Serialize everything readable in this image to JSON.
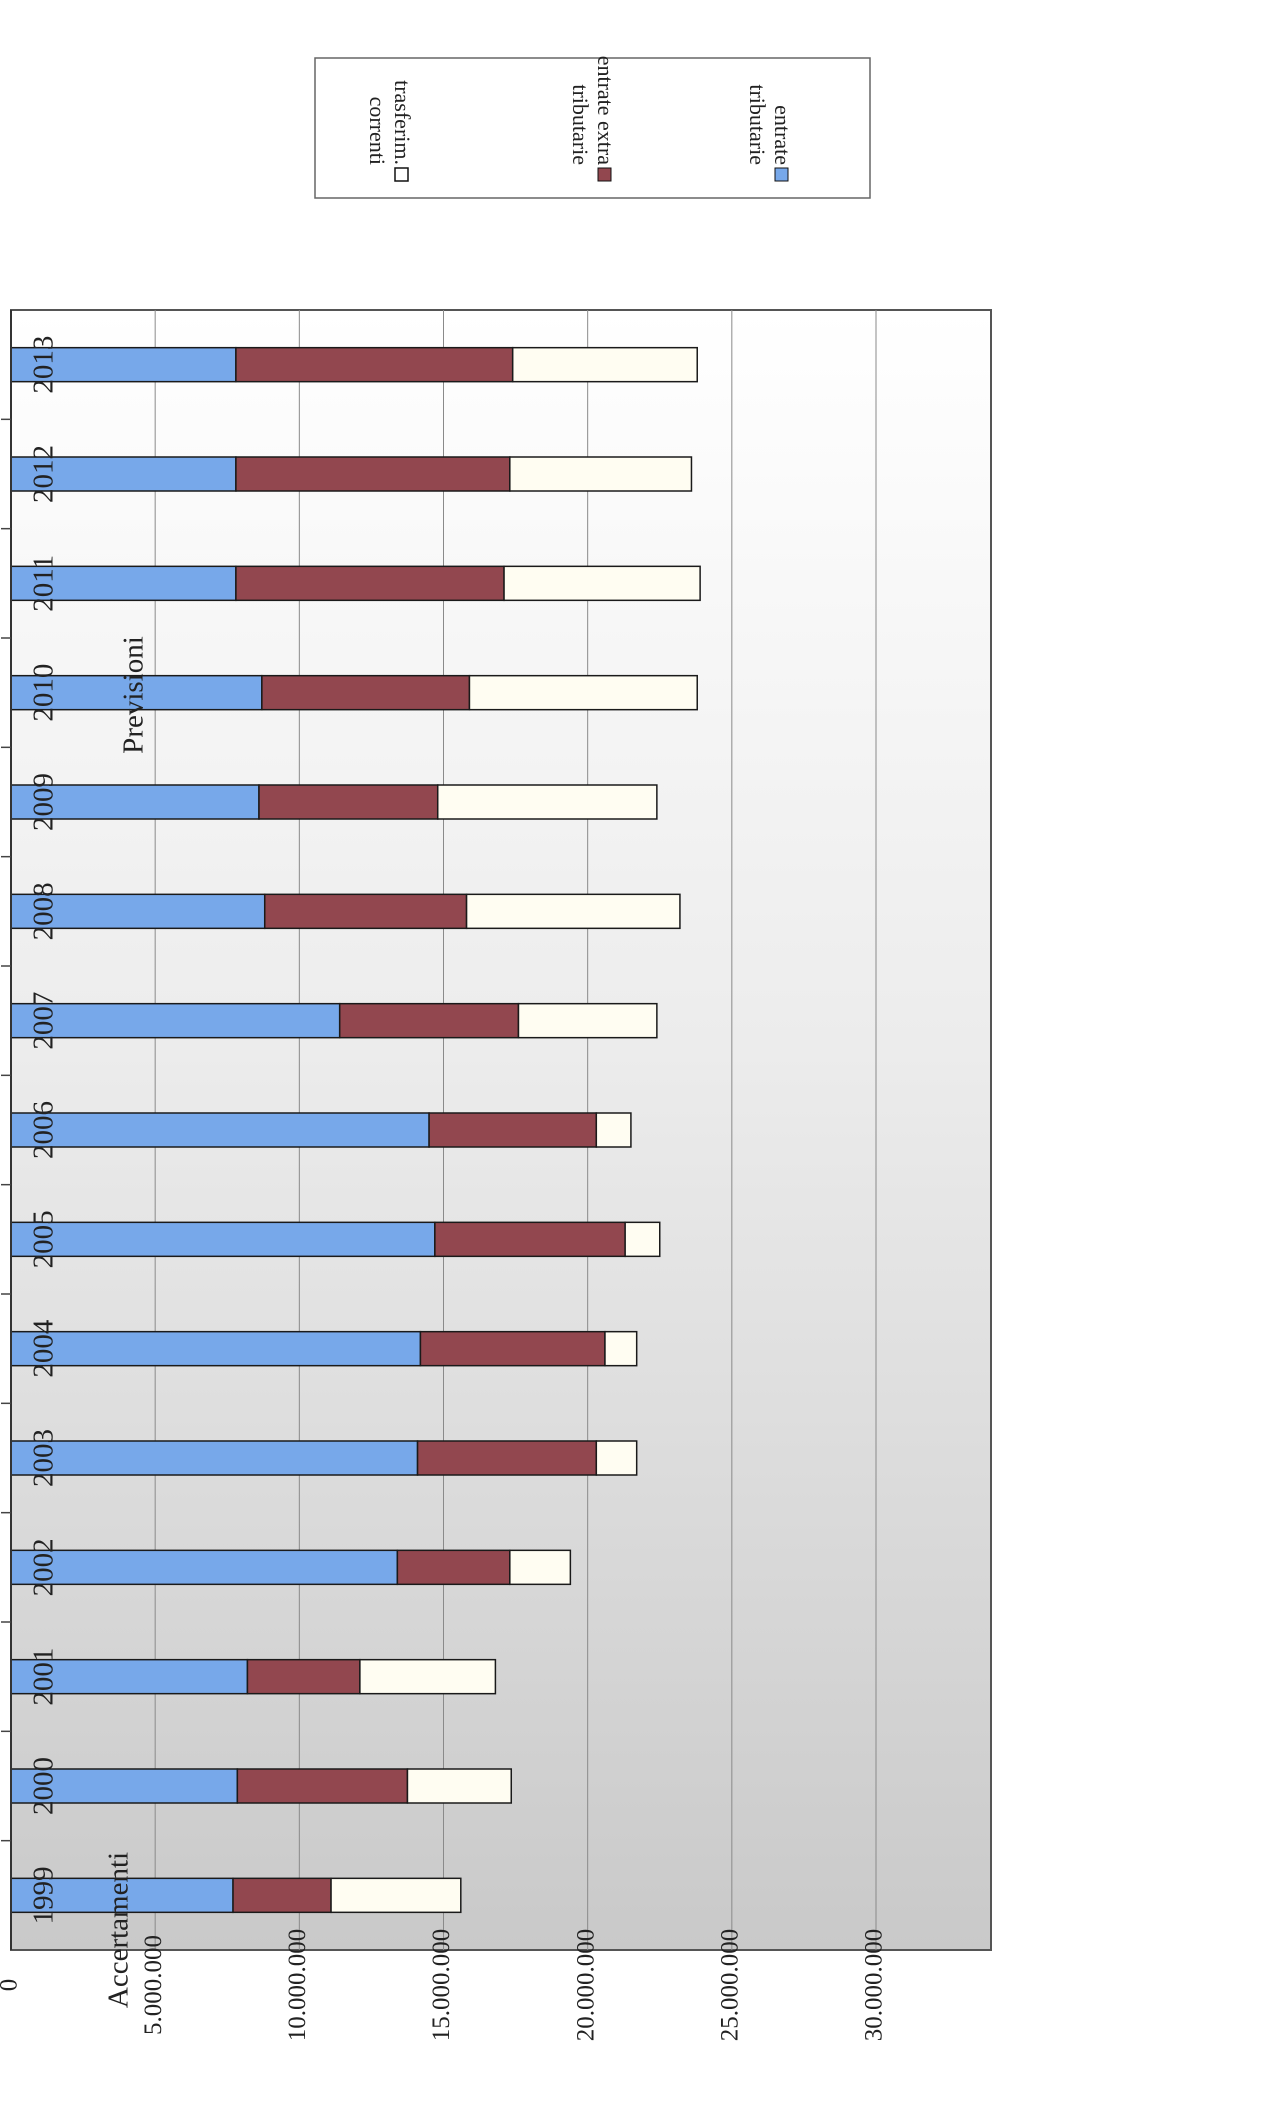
{
  "chart_data": {
    "type": "bar",
    "orientation": "horizontal",
    "stacked": true,
    "categories": [
      "1999",
      "2000",
      "2001",
      "2002",
      "2003",
      "2004",
      "2005",
      "2006",
      "2007",
      "2008",
      "2009",
      "2010",
      "2011",
      "2012",
      "2013"
    ],
    "series": [
      {
        "name": "entrate tributarie",
        "color": "#77a8ea",
        "values": [
          7700000,
          7850000,
          8200000,
          13400000,
          14100000,
          14200000,
          14700000,
          14500000,
          11400000,
          8800000,
          8600000,
          8700000,
          7800000,
          7800000,
          7800000
        ]
      },
      {
        "name": "entrate extra tributarie",
        "color": "#92474f",
        "values": [
          3400000,
          5900000,
          3900000,
          3900000,
          6200000,
          6400000,
          6600000,
          5800000,
          6200000,
          7000000,
          6200000,
          7200000,
          9300000,
          9500000,
          9600000
        ]
      },
      {
        "name": "trasferim. correnti",
        "color": "#fffdf2",
        "values": [
          4500000,
          3600000,
          4700000,
          2100000,
          1400000,
          1100000,
          1200000,
          1200000,
          4800000,
          7400000,
          7600000,
          7900000,
          6800000,
          6300000,
          6400000
        ]
      }
    ],
    "tick_values": [
      0,
      5000000,
      10000000,
      15000000,
      20000000,
      25000000,
      30000000
    ],
    "tick_labels": [
      "0",
      "5.000.000",
      "10.000.000",
      "15.000.000",
      "20.000.000",
      "25.000.000",
      "30.000.000"
    ],
    "ylim": [
      0,
      30000000
    ],
    "annotations": [
      "Accertamenti",
      "Previsioni"
    ],
    "legend_position": "top-right",
    "grid": true
  },
  "legend": [
    {
      "line1": "trasferim.",
      "line2": "correnti",
      "color": "#ffffff"
    },
    {
      "line1": "entrate extra",
      "line2": "tributarie",
      "color": "#92474f"
    },
    {
      "line1": "entrate",
      "line2": "tributarie",
      "color": "#77a8ea"
    }
  ]
}
